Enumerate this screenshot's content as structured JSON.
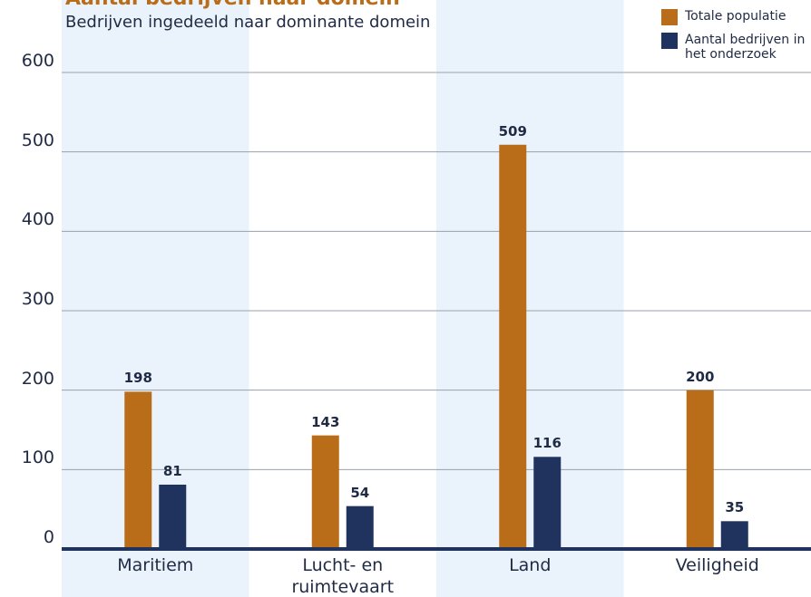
{
  "chart_data": {
    "type": "bar",
    "title": "Aantal bedrijven naar domein",
    "subtitle": "Bedrijven ingedeeld naar dominante domein",
    "categories": [
      "Maritiem",
      "Lucht- en ruimtevaart",
      "Land",
      "Veiligheid"
    ],
    "series": [
      {
        "name": "Totale populatie",
        "color": "#b96d18",
        "values": [
          198,
          143,
          509,
          200
        ]
      },
      {
        "name": "Aantal bedrijven in het onderzoek",
        "color": "#1f335e",
        "values": [
          81,
          54,
          116,
          35
        ]
      }
    ],
    "ylim": [
      0,
      600
    ],
    "yticks": [
      0,
      100,
      200,
      300,
      400,
      500,
      600
    ],
    "grid": true
  }
}
